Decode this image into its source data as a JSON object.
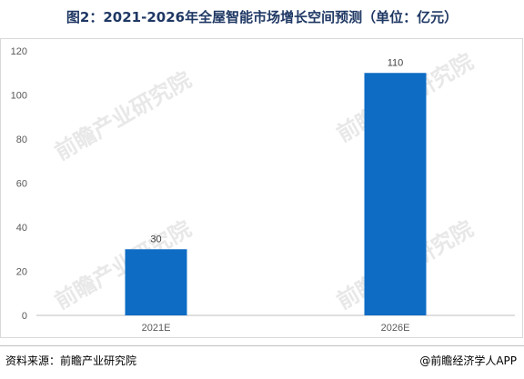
{
  "title": "图2：2021-2026年全屋智能市场增长空间预测（单位：亿元）",
  "footer": {
    "source": "资料来源：前瞻产业研究院",
    "brand": "@前瞻经济学人APP"
  },
  "watermark": "前瞻产业研究院",
  "colors": {
    "bar": "#0e6cc4",
    "axis_text": "#595959",
    "title": "#1f3864"
  },
  "chart_data": {
    "type": "bar",
    "categories": [
      "2021E",
      "2026E"
    ],
    "values": [
      30,
      110
    ],
    "data_labels": [
      "30",
      "110"
    ],
    "y_ticks": [
      "0",
      "20",
      "40",
      "60",
      "80",
      "100",
      "120"
    ],
    "ylim": [
      0,
      120
    ],
    "xlabel": "",
    "ylabel": "",
    "grid": false,
    "legend": "none"
  }
}
